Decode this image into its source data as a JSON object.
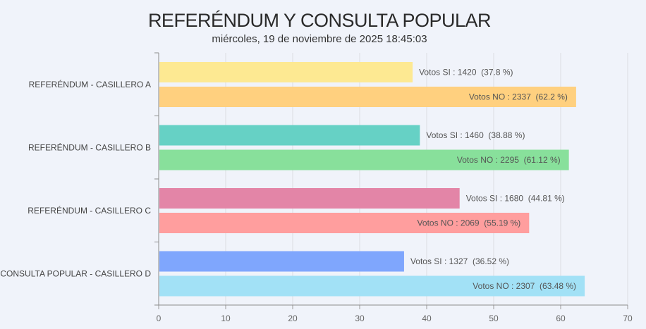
{
  "chart_data": {
    "type": "bar",
    "orientation": "horizontal",
    "title": "REFERÉNDUM Y CONSULTA POPULAR",
    "subtitle": "miércoles, 19 de noviembre de 2025 18:45:03",
    "xlim": [
      0,
      70
    ],
    "xticks": [
      "0",
      "10",
      "20",
      "30",
      "40",
      "50",
      "60",
      "70"
    ],
    "grid": true,
    "categories": [
      "REFERÉNDUM - CASILLERO A",
      "REFERÉNDUM - CASILLERO B",
      "REFERÉNDUM - CASILLERO C",
      "CONSULTA POPULAR - CASILLERO D"
    ],
    "bars": [
      [
        {
          "value": 37.8,
          "label": "Votos SI : 1420  (37.8 %)",
          "color": "#fde992"
        },
        {
          "value": 62.2,
          "label": "Votos NO : 2337  (62.2 %)",
          "color": "#ffd07f"
        }
      ],
      [
        {
          "value": 38.88,
          "label": "Votos SI : 1460  (38.88 %)",
          "color": "#66d1c5"
        },
        {
          "value": 61.12,
          "label": "Votos NO : 2295  (61.12 %)",
          "color": "#88e09b"
        }
      ],
      [
        {
          "value": 44.81,
          "label": "Votos SI : 1680  (44.81 %)",
          "color": "#e385a7"
        },
        {
          "value": 55.19,
          "label": "Votos NO : 2069  (55.19 %)",
          "color": "#ff9e9e"
        }
      ],
      [
        {
          "value": 36.52,
          "label": "Votos SI : 1327  (36.52 %)",
          "color": "#7fa6fd"
        },
        {
          "value": 63.48,
          "label": "Votos NO : 2307  (63.48 %)",
          "color": "#a2e1f6"
        }
      ]
    ]
  }
}
